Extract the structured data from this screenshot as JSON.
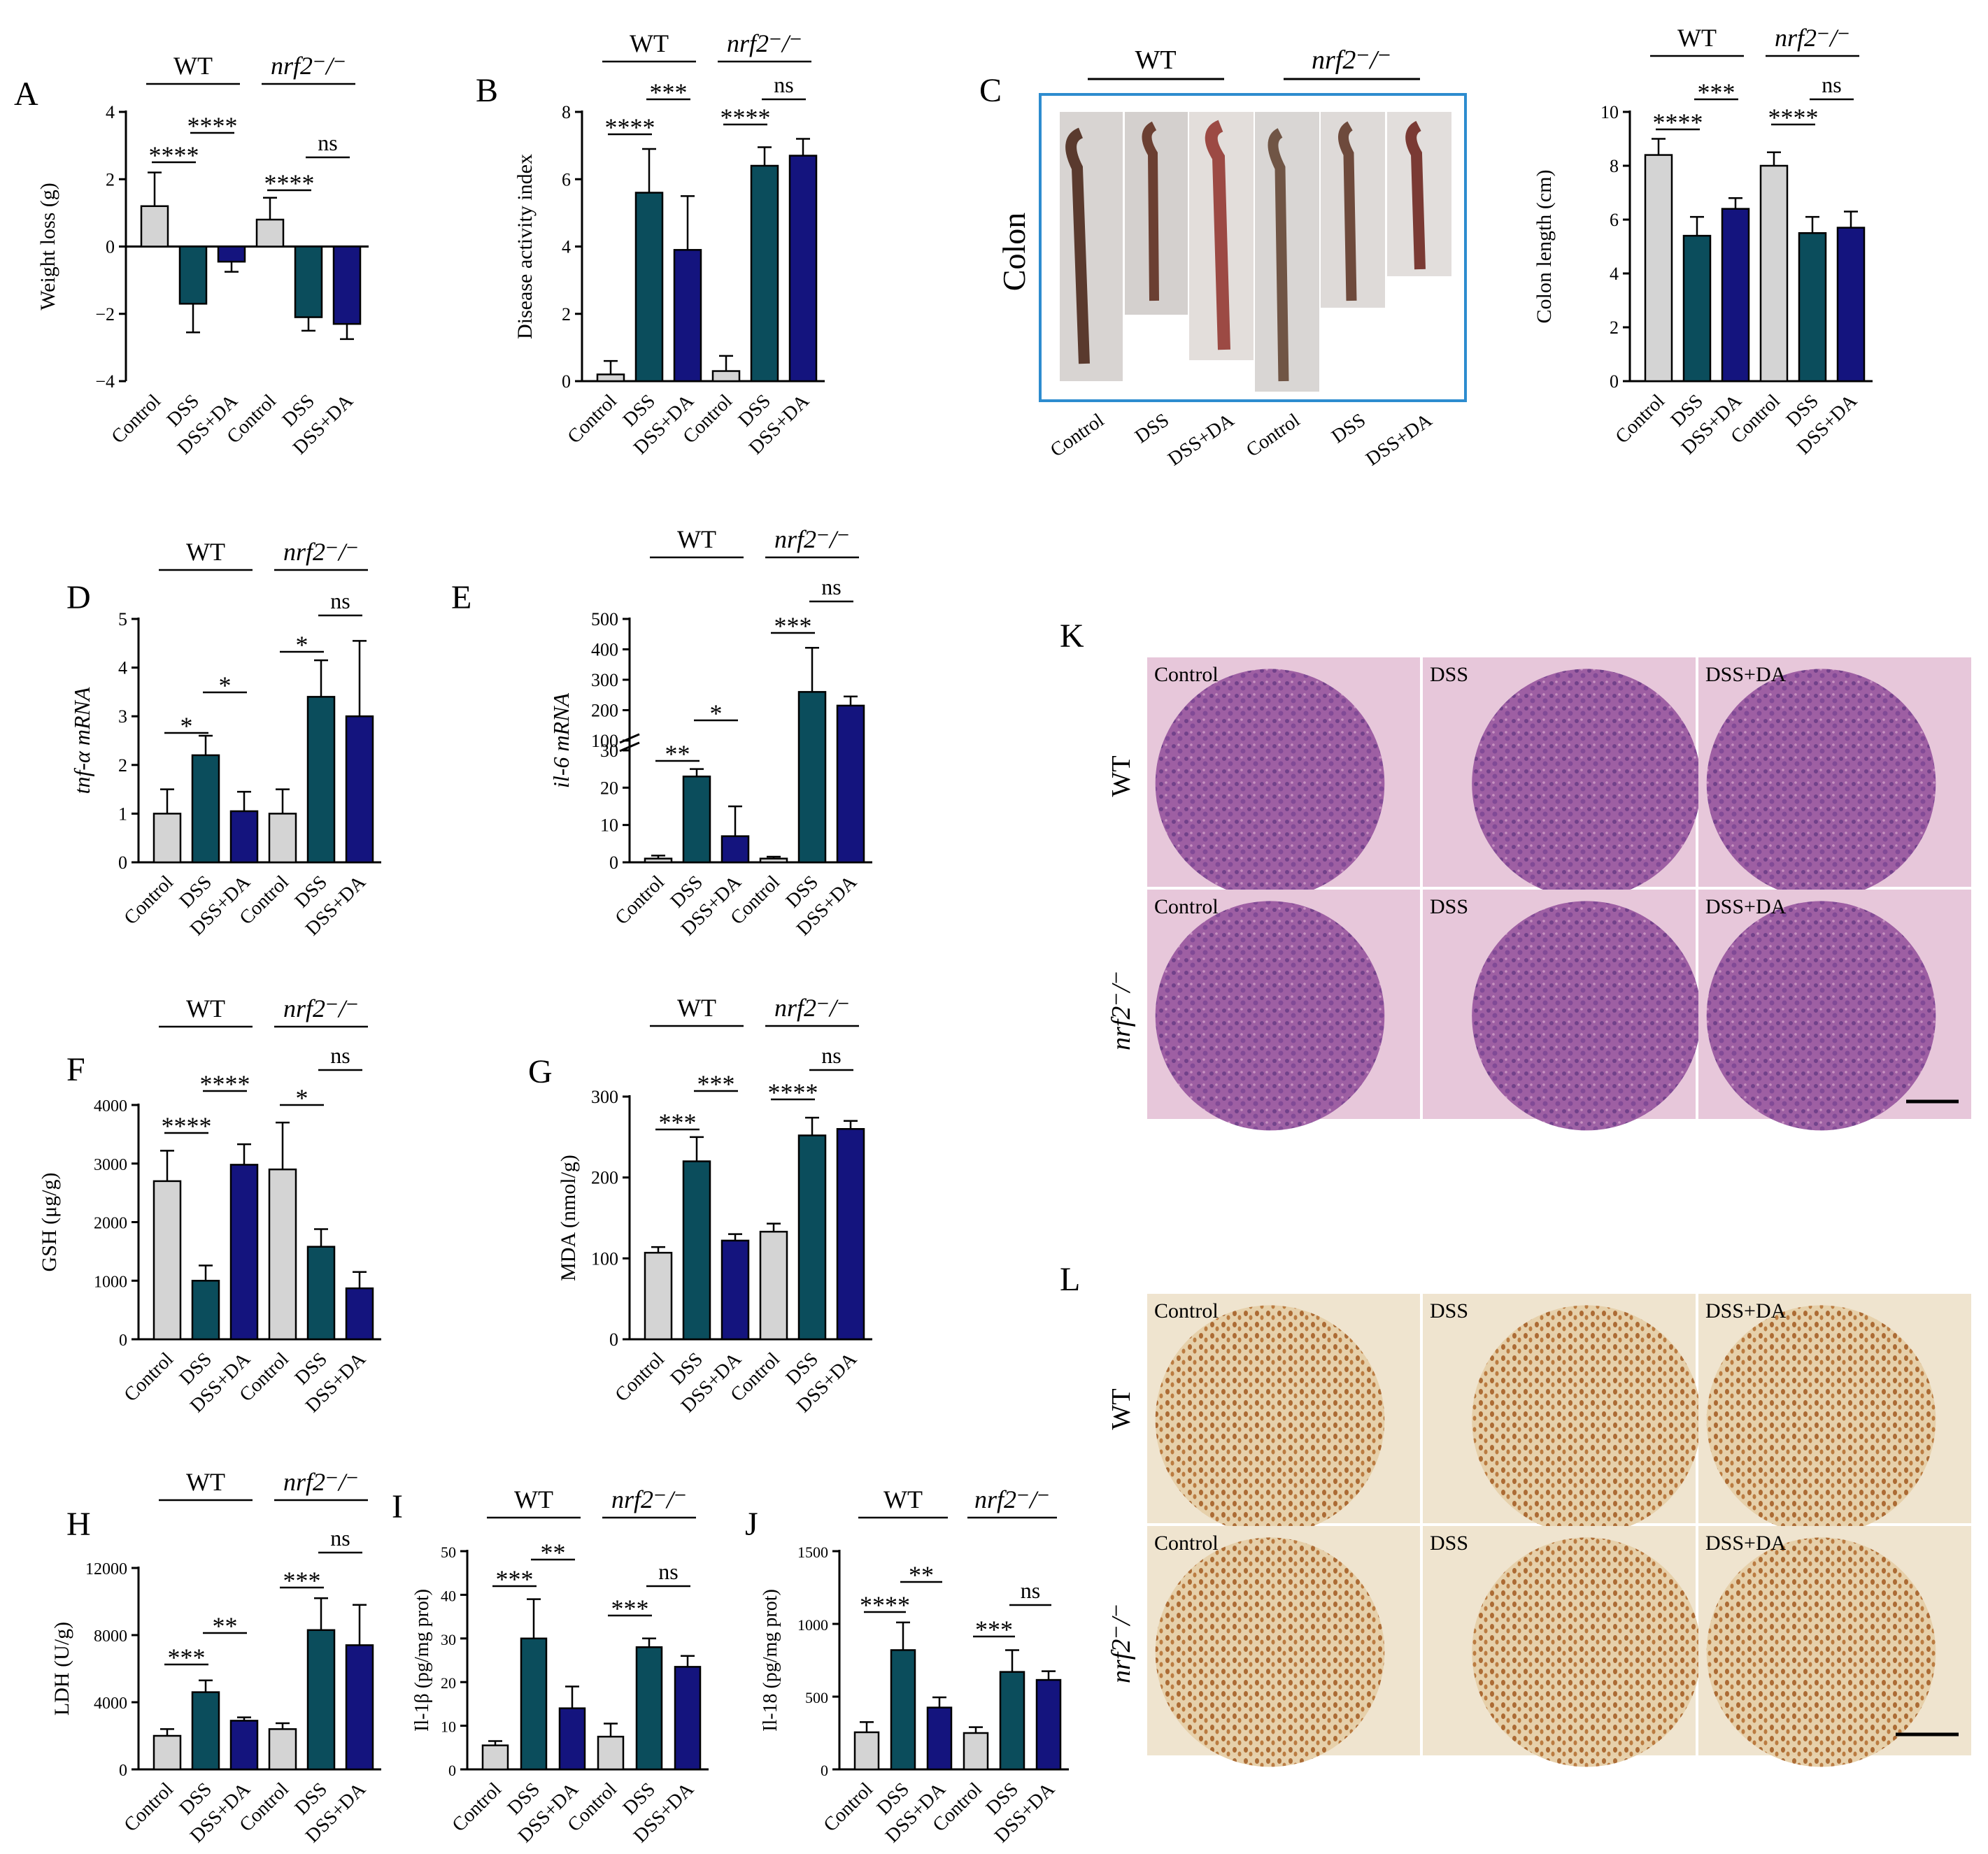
{
  "colors": {
    "control": "#d4d4d4",
    "dss": "#0b4d5c",
    "dssda": "#14147e",
    "frame_c": "#2d8ccf"
  },
  "groups": [
    "WT",
    "nrf2⁻/⁻"
  ],
  "chart_data": [
    {
      "panel": "A",
      "type": "bar",
      "categories": [
        "Control",
        "DSS",
        "DSS+DA",
        "Control",
        "DSS",
        "DSS+DA"
      ],
      "values": [
        1.2,
        -1.7,
        -0.45,
        0.8,
        -2.1,
        -2.3
      ],
      "errors": [
        1.0,
        0.85,
        0.3,
        0.65,
        0.4,
        0.45
      ],
      "ylabel": "Weight loss (g)",
      "ylim": [
        -4,
        4
      ],
      "yticks": [
        "4",
        "2",
        "0",
        "−2",
        "−4"
      ],
      "sig": [
        "****",
        "****",
        "****",
        "ns"
      ]
    },
    {
      "panel": "B",
      "type": "bar",
      "categories": [
        "Control",
        "DSS",
        "DSS+DA",
        "Control",
        "DSS",
        "DSS+DA"
      ],
      "values": [
        0.2,
        5.6,
        3.9,
        0.3,
        6.4,
        6.7
      ],
      "errors": [
        0.4,
        1.3,
        1.6,
        0.45,
        0.55,
        0.5
      ],
      "ylabel": "Disease activity index",
      "ylim": [
        0,
        8
      ],
      "yticks": [
        "8",
        "6",
        "4",
        "2",
        "0"
      ],
      "sig": [
        "****",
        "***",
        "****",
        "ns"
      ]
    },
    {
      "panel": "C",
      "type": "bar",
      "categories": [
        "Control",
        "DSS",
        "DSS+DA",
        "Control",
        "DSS",
        "DSS+DA"
      ],
      "values": [
        8.4,
        5.4,
        6.4,
        8.0,
        5.5,
        5.7
      ],
      "errors": [
        0.6,
        0.7,
        0.4,
        0.5,
        0.6,
        0.6
      ],
      "ylabel": "Colon length (cm)",
      "ylim": [
        0,
        10
      ],
      "yticks": [
        "10",
        "8",
        "6",
        "4",
        "2",
        "0"
      ],
      "sig": [
        "****",
        "***",
        "****",
        "ns"
      ]
    },
    {
      "panel": "D",
      "type": "bar",
      "categories": [
        "Control",
        "DSS",
        "DSS+DA",
        "Control",
        "DSS",
        "DSS+DA"
      ],
      "values": [
        1.0,
        2.2,
        1.05,
        1.0,
        3.4,
        3.0
      ],
      "errors": [
        0.5,
        0.4,
        0.4,
        0.5,
        0.75,
        1.55
      ],
      "ylabel": "tnf-α mRNA",
      "ylim": [
        0,
        5
      ],
      "yticks": [
        "5",
        "4",
        "3",
        "2",
        "1",
        "0"
      ],
      "sig": [
        "*",
        "*",
        "*",
        "ns"
      ]
    },
    {
      "panel": "E",
      "type": "bar",
      "categories": [
        "Control",
        "DSS",
        "DSS+DA",
        "Control",
        "DSS",
        "DSS+DA"
      ],
      "values": [
        1,
        23,
        7,
        1,
        260,
        215
      ],
      "errors": [
        0.8,
        2,
        8,
        0.5,
        145,
        30
      ],
      "ylabel": "il-6 mRNA",
      "ylim": [
        0,
        500
      ],
      "axis_break": [
        30,
        100
      ],
      "yticks": [
        "500",
        "400",
        "300",
        "200",
        "100",
        "30",
        "20",
        "10",
        "0"
      ],
      "sig": [
        "**",
        "*",
        "***",
        "ns"
      ]
    },
    {
      "panel": "F",
      "type": "bar",
      "categories": [
        "Control",
        "DSS",
        "DSS+DA",
        "Control",
        "DSS",
        "DSS+DA"
      ],
      "values": [
        2700,
        1000,
        2980,
        2900,
        1580,
        870
      ],
      "errors": [
        520,
        260,
        350,
        800,
        300,
        280
      ],
      "ylabel": "GSH (μg/g)",
      "ylim": [
        0,
        4000
      ],
      "yticks": [
        "4000",
        "3000",
        "2000",
        "1000",
        "0"
      ],
      "sig": [
        "****",
        "****",
        "*",
        "ns"
      ]
    },
    {
      "panel": "G",
      "type": "bar",
      "categories": [
        "Control",
        "DSS",
        "DSS+DA",
        "Control",
        "DSS",
        "DSS+DA"
      ],
      "values": [
        107,
        220,
        122,
        133,
        252,
        260
      ],
      "errors": [
        7,
        30,
        8,
        10,
        22,
        10
      ],
      "ylabel": "MDA (nmol/g)",
      "ylim": [
        0,
        300
      ],
      "yticks": [
        "300",
        "200",
        "100",
        "0"
      ],
      "sig": [
        "***",
        "***",
        "****",
        "ns"
      ]
    },
    {
      "panel": "H",
      "type": "bar",
      "categories": [
        "Control",
        "DSS",
        "DSS+DA",
        "Control",
        "DSS",
        "DSS+DA"
      ],
      "values": [
        2000,
        4600,
        2900,
        2400,
        8300,
        7400
      ],
      "errors": [
        400,
        700,
        200,
        350,
        1900,
        2400
      ],
      "ylabel": "LDH (U/g)",
      "ylim": [
        0,
        12000
      ],
      "yticks": [
        "12000",
        "8000",
        "4000",
        "0"
      ],
      "sig": [
        "***",
        "**",
        "***",
        "ns"
      ]
    },
    {
      "panel": "I",
      "type": "bar",
      "categories": [
        "Control",
        "DSS",
        "DSS+DA",
        "Control",
        "DSS",
        "DSS+DA"
      ],
      "values": [
        5.5,
        30,
        14,
        7.5,
        28,
        23.5
      ],
      "errors": [
        1,
        9,
        5,
        3,
        2,
        2.5
      ],
      "ylabel": "Il-1β (pg/mg prot)",
      "ylim": [
        0,
        50
      ],
      "yticks": [
        "50",
        "40",
        "30",
        "20",
        "10",
        "0"
      ],
      "sig": [
        "***",
        "**",
        "***",
        "ns"
      ]
    },
    {
      "panel": "J",
      "type": "bar",
      "categories": [
        "Control",
        "DSS",
        "DSS+DA",
        "Control",
        "DSS",
        "DSS+DA"
      ],
      "values": [
        255,
        820,
        425,
        250,
        670,
        615
      ],
      "errors": [
        70,
        190,
        70,
        40,
        150,
        60
      ],
      "ylabel": "Il-18 (pg/mg prot)",
      "ylim": [
        0,
        1500
      ],
      "yticks": [
        "1500",
        "1000",
        "500",
        "0"
      ],
      "sig": [
        "****",
        "**",
        "***",
        "ns"
      ]
    }
  ],
  "panel_c": {
    "label": "C",
    "row_label": "Colon",
    "categories": [
      "Control",
      "DSS",
      "DSS+DA",
      "Control",
      "DSS",
      "DSS+DA"
    ]
  },
  "panel_k": {
    "label": "K",
    "rows": [
      "WT",
      "nrf2⁻/⁻"
    ],
    "cols": [
      "Control",
      "DSS",
      "DSS+DA"
    ]
  },
  "panel_l": {
    "label": "L",
    "rows": [
      "WT",
      "nrf2⁻/⁻"
    ],
    "cols": [
      "Control",
      "DSS",
      "DSS+DA"
    ]
  }
}
